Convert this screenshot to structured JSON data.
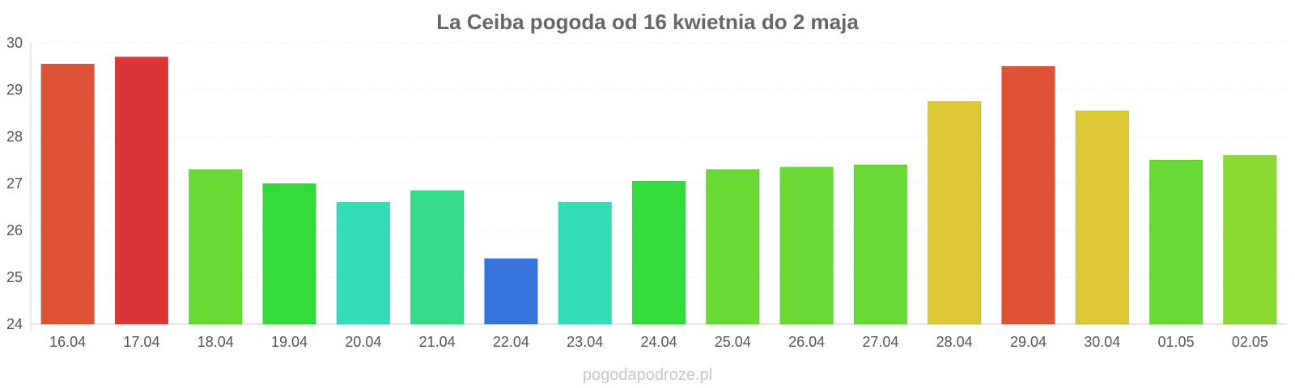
{
  "chart_data": {
    "type": "bar",
    "title": "La Ceiba pogoda od 16 kwietnia do 2 maja",
    "xlabel": "",
    "ylabel": "",
    "categories": [
      "16.04",
      "17.04",
      "18.04",
      "19.04",
      "20.04",
      "21.04",
      "22.04",
      "23.04",
      "24.04",
      "25.04",
      "26.04",
      "27.04",
      "28.04",
      "29.04",
      "30.04",
      "01.05",
      "02.05"
    ],
    "values": [
      29.55,
      29.7,
      27.3,
      27.0,
      26.6,
      26.85,
      25.4,
      26.6,
      27.05,
      27.3,
      27.35,
      27.4,
      28.75,
      29.5,
      28.55,
      27.5,
      27.6
    ],
    "colors": [
      "#de5235",
      "#dc3535",
      "#6ad935",
      "#32dc3a",
      "#35dcb8",
      "#35dc8a",
      "#3575dc",
      "#35dcb8",
      "#32dc3a",
      "#6ad935",
      "#6ad935",
      "#6ad935",
      "#dcc835",
      "#de5235",
      "#dcc835",
      "#6ad935",
      "#8ad935"
    ],
    "ylim": [
      24,
      30
    ],
    "yticks": [
      24,
      25,
      26,
      27,
      28,
      29,
      30
    ],
    "grid": true,
    "legend": "none"
  },
  "watermark": "pogodapodroze.pl"
}
